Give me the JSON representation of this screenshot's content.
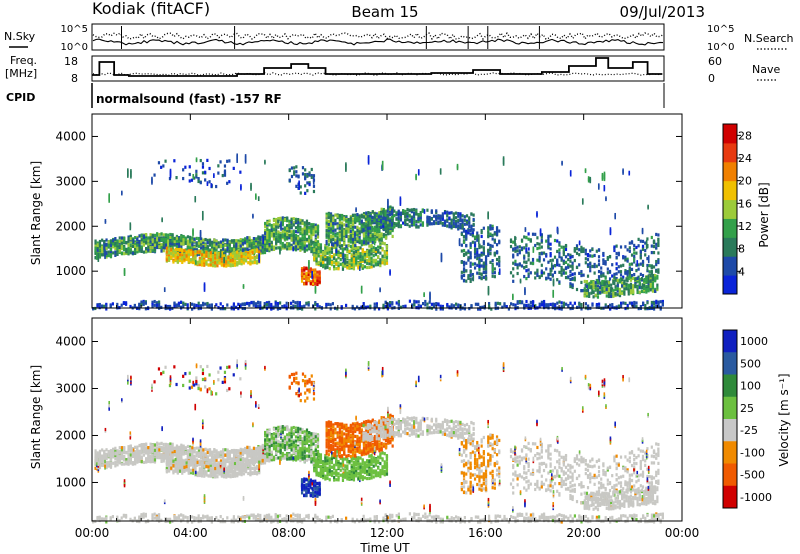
{
  "header": {
    "station": "Kodiak (fitACF)",
    "beam": "Beam 15",
    "date": "09/Jul/2013"
  },
  "strip_labels": {
    "nsky": "N.Sky",
    "nsearch": "N.Search",
    "freq_line1": "Freq.",
    "freq_line2": "[MHz]",
    "nave": "Nave",
    "cpid": "CPID",
    "cpid_text": "normalsound (fast) -157 RF"
  },
  "colors": {
    "power": [
      "#0a24d8",
      "#1e4aa8",
      "#2a7a5a",
      "#33a04a",
      "#9ccb3a",
      "#f0c000",
      "#f08000",
      "#e83a10",
      "#d00000"
    ],
    "velocity": [
      "#1020c0",
      "#2a5aa0",
      "#2f8a3a",
      "#6cc040",
      "#c8c8c8",
      "#f08a00",
      "#f05a00",
      "#d00000"
    ],
    "velocity_low": "#c8c8c4"
  },
  "chart_data": [
    {
      "type": "heatmap",
      "name": "power-panel",
      "xlabel": "",
      "ylabel": "Slant Range [km]",
      "xlim": [
        0,
        24
      ],
      "ylim": [
        180,
        4500
      ],
      "yticks": [
        1000,
        2000,
        3000,
        4000
      ],
      "colorbar_label": "Power [dB]",
      "colorbar_ticks": [
        "4",
        "8",
        "12",
        "16",
        "20",
        "24",
        "28"
      ],
      "colorbar_range": [
        0,
        30
      ],
      "grid": false
    },
    {
      "type": "heatmap",
      "name": "velocity-panel",
      "xlabel": "Time UT",
      "ylabel": "Slant Range [km]",
      "xlim": [
        0,
        24
      ],
      "ylim": [
        180,
        4500
      ],
      "xticks": [
        "00:00",
        "04:00",
        "08:00",
        "12:00",
        "16:00",
        "20:00",
        "00:00"
      ],
      "yticks": [
        1000,
        2000,
        3000,
        4000
      ],
      "colorbar_label": "Velocity [m s⁻¹]",
      "colorbar_ticks": [
        "1000",
        "500",
        "100",
        "25",
        "-25",
        "-100",
        "-500",
        "-1000"
      ],
      "grid": false
    },
    {
      "type": "line",
      "name": "noise-strip",
      "y_left_ticks": [
        "10^5",
        "10^0"
      ],
      "y_right_ticks": [
        "10^5",
        "10^0"
      ]
    },
    {
      "type": "line",
      "name": "freq-nave-strip",
      "y_left_ticks": [
        "18",
        "8"
      ],
      "y_right_ticks": [
        "60",
        "0"
      ]
    }
  ]
}
